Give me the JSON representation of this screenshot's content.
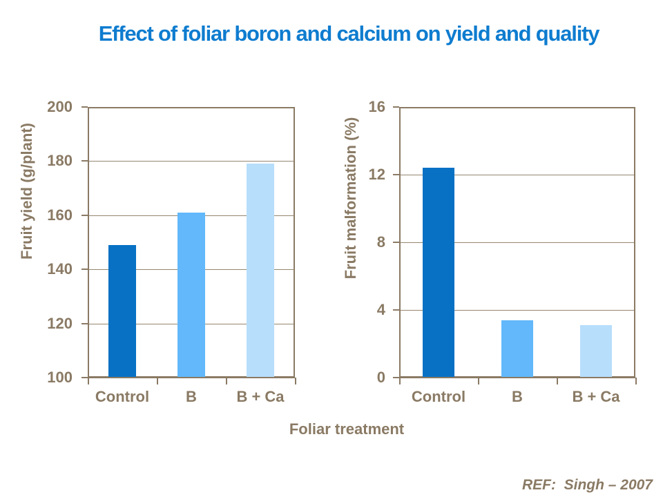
{
  "title": {
    "text": "Effect of foliar boron and calcium on yield and quality",
    "color": "#0e7ccf"
  },
  "shared": {
    "xlabel": "Foliar treatment",
    "categories": [
      "Control",
      "B",
      "B + Ca"
    ]
  },
  "footer": {
    "ref_label": "REF:  Singh – 2007"
  },
  "colors": {
    "axis_brown": "#8a7a64",
    "grid_brown": "#94866f",
    "bar_control": "#0871c4",
    "bar_b": "#62b8fa",
    "bar_bca": "#b7defb",
    "background": "#ffffff"
  },
  "chart_data": [
    {
      "type": "bar",
      "title": "",
      "xlabel": "Foliar treatment",
      "ylabel": "Fruit yield (g/plant)",
      "categories": [
        "Control",
        "B",
        "B + Ca"
      ],
      "values": [
        149,
        161,
        179
      ],
      "ylim": [
        100,
        200
      ],
      "yticks": [
        100,
        120,
        140,
        160,
        180,
        200
      ],
      "grid": true,
      "legend": false,
      "bar_colors": [
        "#0871c4",
        "#62b8fa",
        "#b7defb"
      ]
    },
    {
      "type": "bar",
      "title": "",
      "xlabel": "Foliar treatment",
      "ylabel": "Fruit malformation (%)",
      "categories": [
        "Control",
        "B",
        "B + Ca"
      ],
      "values": [
        12.4,
        3.4,
        3.1
      ],
      "ylim": [
        0,
        16
      ],
      "yticks": [
        0,
        4,
        8,
        12,
        16
      ],
      "grid": true,
      "legend": false,
      "bar_colors": [
        "#0871c4",
        "#62b8fa",
        "#b7defb"
      ]
    }
  ]
}
